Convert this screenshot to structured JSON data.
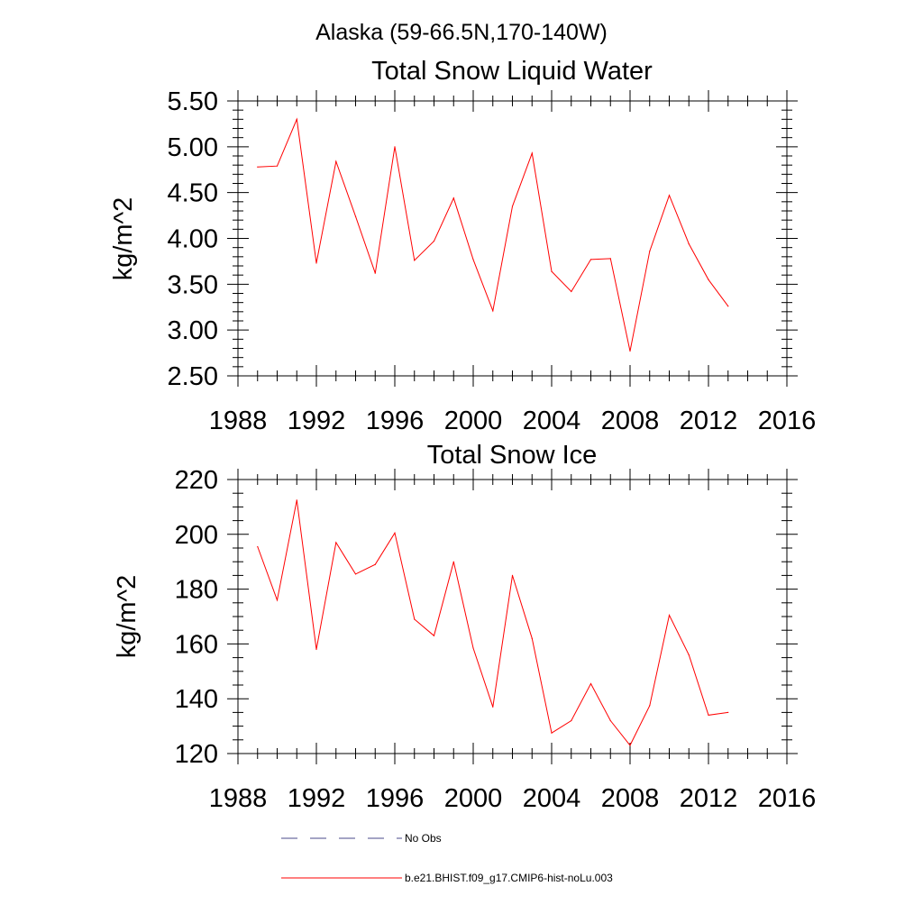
{
  "figure_title": "Alaska (59-66.5N,170-140W)",
  "legend": {
    "items": [
      {
        "label": "No Obs",
        "color": "#4a4a8a",
        "style": "dashed"
      },
      {
        "label": "b.e21.BHIST.f09_g17.CMIP6-hist-noLu.003",
        "color": "#ff0000",
        "style": "solid"
      }
    ]
  },
  "chart_data": [
    {
      "type": "line",
      "title": "Total Snow Liquid Water",
      "xlabel": "",
      "ylabel": "kg/m^2",
      "xlim": [
        1988,
        2016
      ],
      "ylim": [
        2.5,
        5.5
      ],
      "x_ticks": [
        1988,
        1992,
        1996,
        2000,
        2004,
        2008,
        2012,
        2016
      ],
      "x_tick_labels": [
        "1988",
        "1992",
        "1996",
        "2000",
        "2004",
        "2008",
        "2012",
        "2016"
      ],
      "y_ticks": [
        2.5,
        3.0,
        3.5,
        4.0,
        4.5,
        5.0,
        5.5
      ],
      "y_tick_labels": [
        "2.50",
        "3.00",
        "3.50",
        "4.00",
        "4.50",
        "5.00",
        "5.50"
      ],
      "grid": false,
      "series": [
        {
          "color": "#ff0000",
          "x": [
            1989,
            1990,
            1991,
            1992,
            1993,
            1994,
            1995,
            1996,
            1997,
            1998,
            1999,
            2000,
            2001,
            2002,
            2003,
            2004,
            2005,
            2006,
            2007,
            2008,
            2009,
            2010,
            2011,
            2012,
            2013
          ],
          "y": [
            4.78,
            4.79,
            5.3,
            3.73,
            4.84,
            4.24,
            3.62,
            5.0,
            3.76,
            3.97,
            4.44,
            3.77,
            3.21,
            4.35,
            4.93,
            3.64,
            3.42,
            3.77,
            3.78,
            2.77,
            3.86,
            4.47,
            3.94,
            3.55,
            3.26
          ]
        }
      ]
    },
    {
      "type": "line",
      "title": "Total Snow Ice",
      "xlabel": "",
      "ylabel": "kg/m^2",
      "xlim": [
        1988,
        2016
      ],
      "ylim": [
        120,
        220
      ],
      "x_ticks": [
        1988,
        1992,
        1996,
        2000,
        2004,
        2008,
        2012,
        2016
      ],
      "x_tick_labels": [
        "1988",
        "1992",
        "1996",
        "2000",
        "2004",
        "2008",
        "2012",
        "2016"
      ],
      "y_ticks": [
        120,
        140,
        160,
        180,
        200,
        220
      ],
      "y_tick_labels": [
        "120",
        "140",
        "160",
        "180",
        "200",
        "220"
      ],
      "grid": false,
      "series": [
        {
          "color": "#ff0000",
          "x": [
            1989,
            1990,
            1991,
            1992,
            1993,
            1994,
            1995,
            1996,
            1997,
            1998,
            1999,
            2000,
            2001,
            2002,
            2003,
            2004,
            2005,
            2006,
            2007,
            2008,
            2009,
            2010,
            2011,
            2012,
            2013
          ],
          "y": [
            195.5,
            176,
            212.5,
            158,
            197,
            185.5,
            189,
            200.5,
            169,
            163,
            190,
            158.5,
            137,
            185,
            162,
            127.5,
            132,
            145.5,
            132,
            123,
            137.5,
            170.5,
            156,
            134,
            135
          ]
        }
      ]
    }
  ]
}
